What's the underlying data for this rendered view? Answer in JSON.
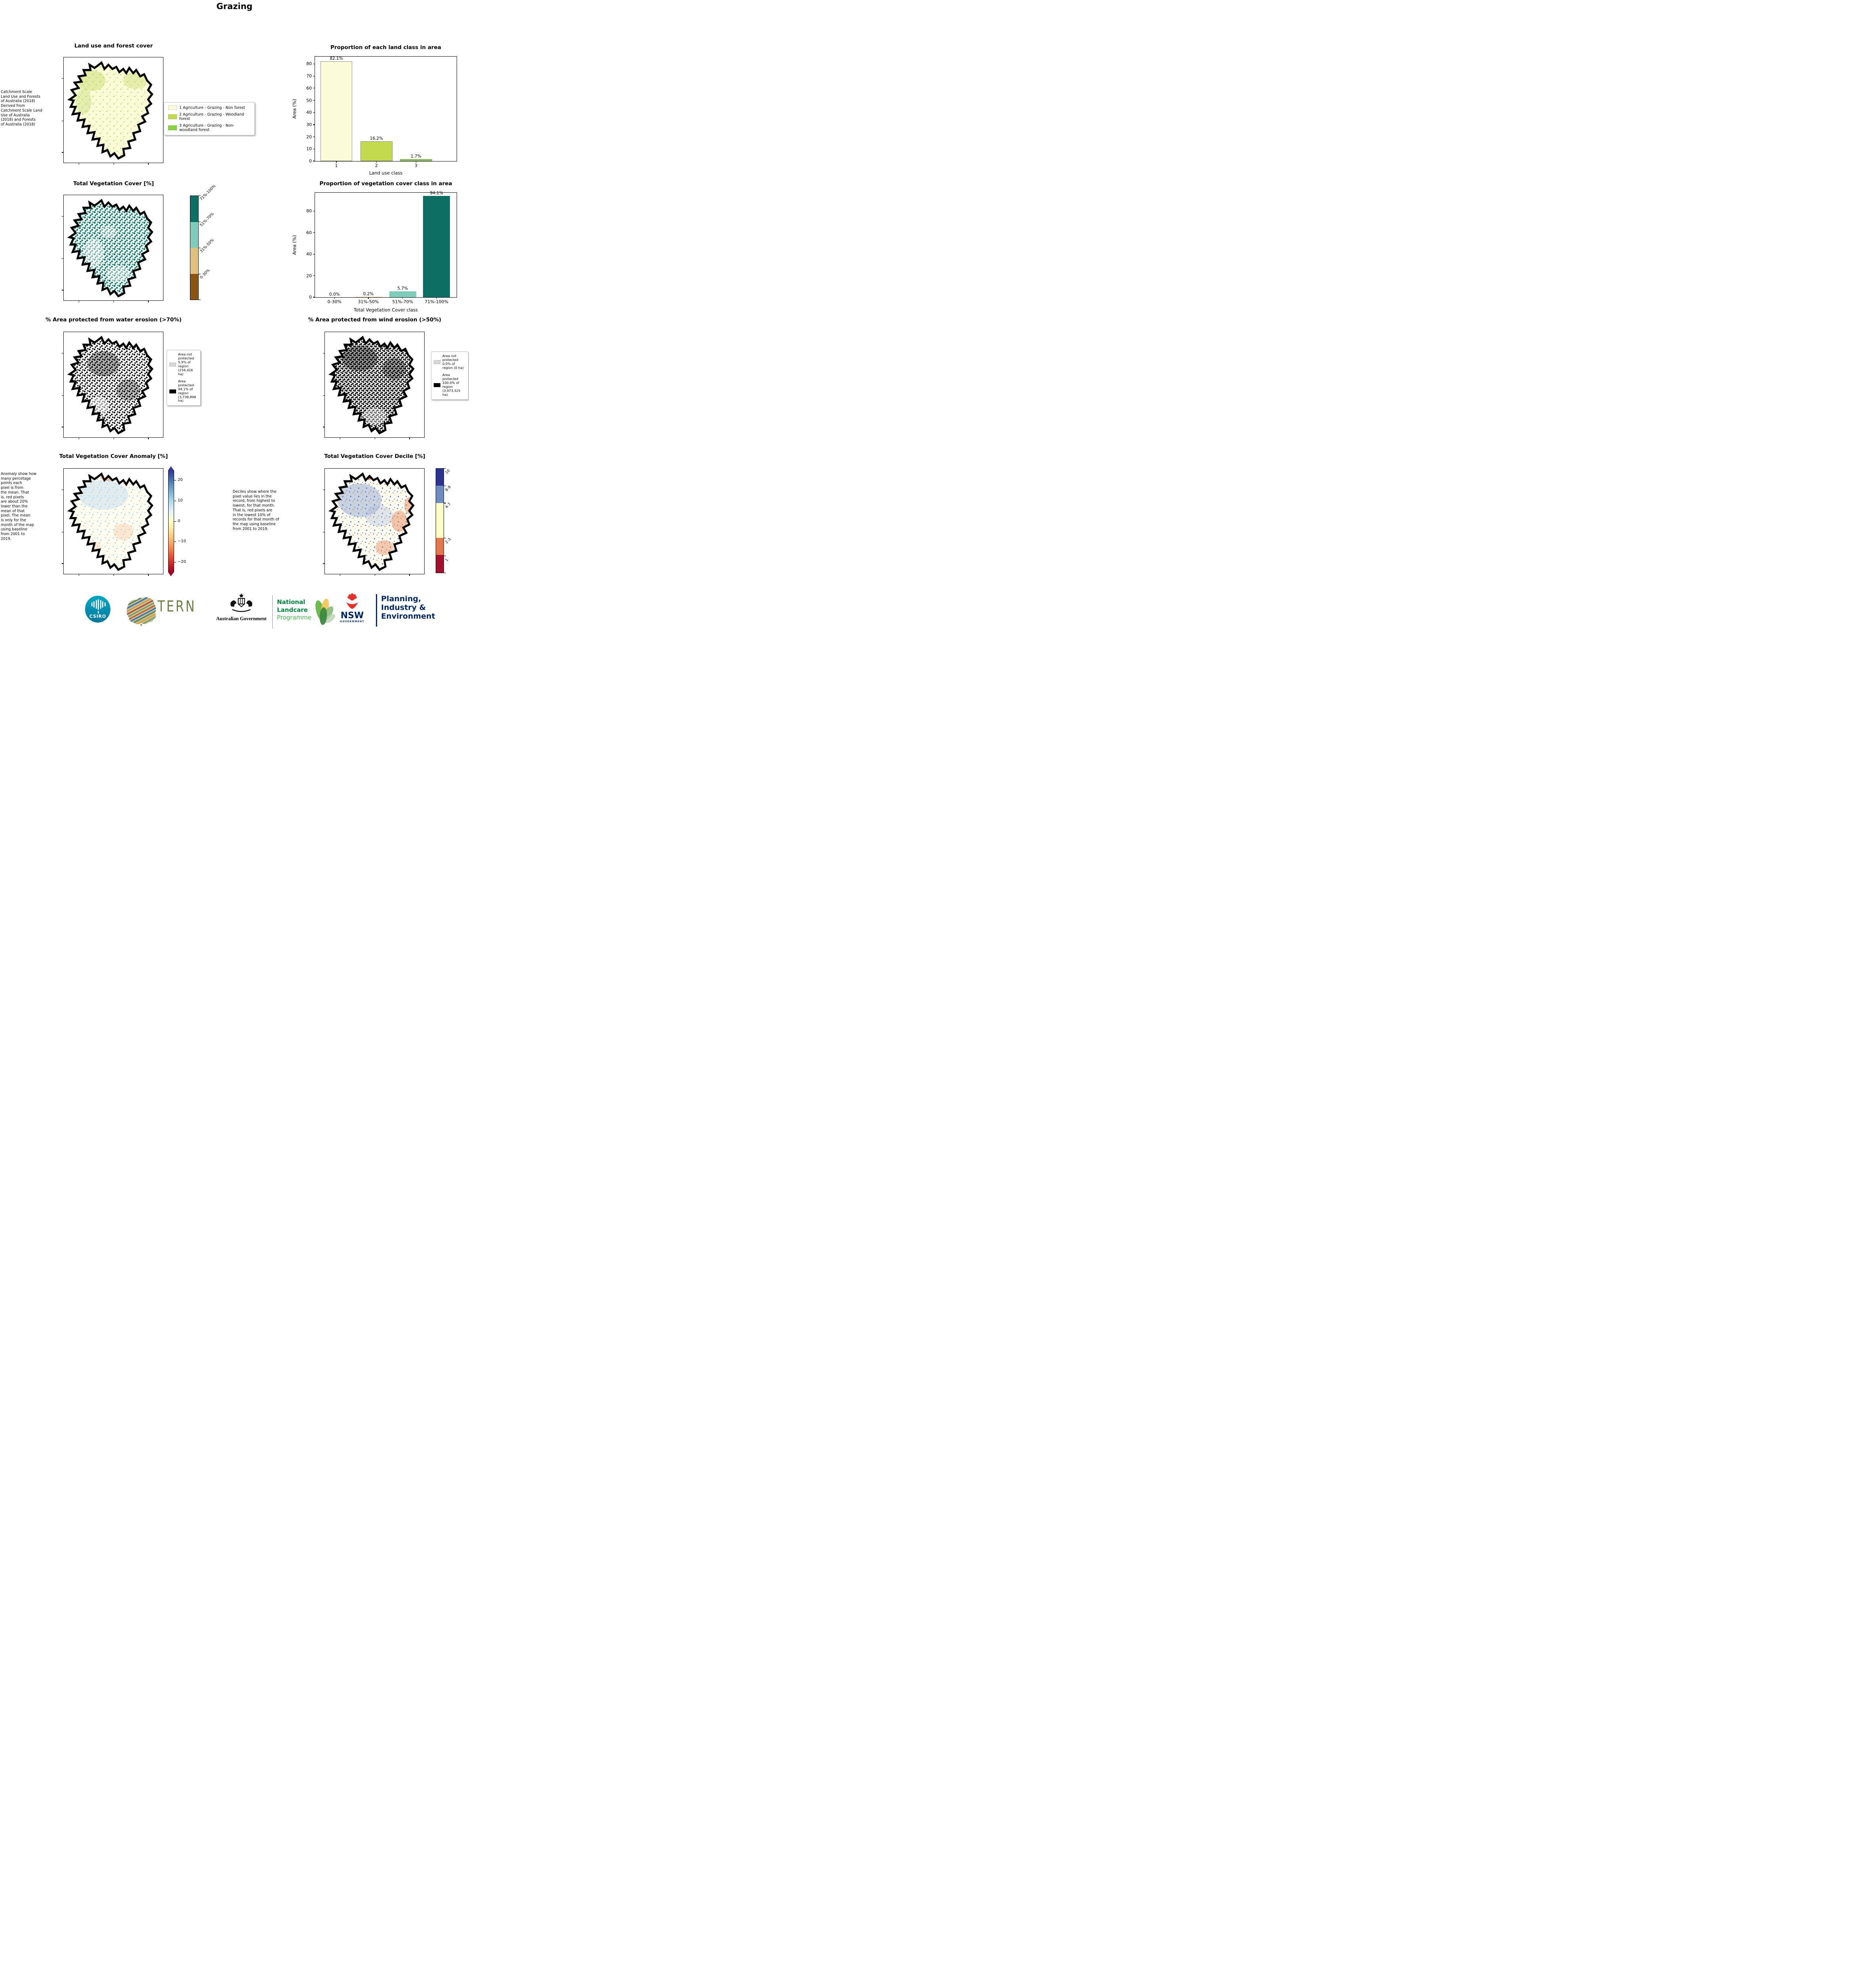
{
  "title": "Grazing",
  "chart_data": [
    {
      "type": "bar",
      "title": "Proportion of each land class in area",
      "xlabel": "Land use class",
      "ylabel": "Area (%)",
      "categories": [
        "1",
        "2",
        "3"
      ],
      "values": [
        82.1,
        16.2,
        1.7
      ],
      "value_labels": [
        "82.1%",
        "16.2%",
        "1.7%"
      ],
      "bar_colors": [
        "#fbfbd9",
        "#c3d94e",
        "#8bd341"
      ],
      "bar_edge": "#8a8a8a",
      "yticks": [
        0,
        10,
        20,
        30,
        40,
        50,
        60,
        70,
        80
      ],
      "ylim": [
        0,
        86
      ],
      "grid": false,
      "legend": "none"
    },
    {
      "type": "bar",
      "title": "Proportion of vegetation cover class in area",
      "xlabel": "Total Vegetation Cover class",
      "ylabel": "Area (%)",
      "categories": [
        "0-30%",
        "31%-50%",
        "51%-70%",
        "71%-100%"
      ],
      "values": [
        0.0,
        0.2,
        5.7,
        94.1
      ],
      "value_labels": [
        "0.0%",
        "0.2%",
        "5.7%",
        "94.1%"
      ],
      "bar_colors": [
        "#8a5513",
        "#dfc07f",
        "#7fccba",
        "#0d6e64"
      ],
      "bar_edge": null,
      "yticks": [
        0,
        20,
        40,
        60,
        80
      ],
      "ylim": [
        0,
        97
      ],
      "grid": false,
      "legend": "none"
    }
  ],
  "row1": {
    "note": "Catchment Scale\nLand Use and Forests\nof Australia (2018)\nDerived from\nCatchment Scale Land\nUse of Australia\n(2018) and Forests\nof Australia (2018)",
    "map_title": "Land use and forest cover",
    "legend_items": [
      {
        "label": "1 Agriculture - Grazing - Non forest",
        "color": "#fbfbd9"
      },
      {
        "label": "2 Agriculture - Grazing - Woodland forest",
        "color": "#c3d94e"
      },
      {
        "label": "3 Agriculture - Grazing - Non-woodland forest",
        "color": "#8bd341"
      }
    ]
  },
  "row2": {
    "map_title": "Total Vegetation Cover [%]",
    "colorbar": {
      "labels": [
        "71%-100%",
        "51%-70%",
        "31%-50%",
        "0-30%"
      ],
      "colors": [
        "#0d6e64",
        "#80ccba",
        "#dfc07f",
        "#8a5513"
      ]
    }
  },
  "row3": {
    "left": {
      "map_title": "% Area protected from water erosion (>70%)",
      "legend": [
        {
          "label": "Area not protected 5.9% of region (234,426 ha)",
          "color": "#d9d9d9"
        },
        {
          "label": "Area protected 94.1% of region (3,738,898 ha)",
          "color": "#000000"
        }
      ]
    },
    "right": {
      "map_title": "% Area protected from wind erosion (>50%)",
      "legend": [
        {
          "label": "Area not protected 0.0% of region (0 ha)",
          "color": "#d9d9d9"
        },
        {
          "label": "Area protected 100.0% of region (3,973,325 ha)",
          "color": "#000000"
        }
      ]
    }
  },
  "row4": {
    "left": {
      "map_title": "Total Vegetation Cover Anomaly [%]",
      "note": "Anomaly show how\nmany percetage\npoints each\npixel is from\nthe mean. That\nis, red pixels\nare about 20%\nlower than the\nmean of that\npixel. The mean\nis only for the\nmonth of the map\nusing baseline\nfrom 2001 to\n2019.",
      "colorbar_ticks": [
        "20",
        "10",
        "0",
        "−10",
        "−20"
      ],
      "gradient": [
        "#313695",
        "#4575b4",
        "#74add1",
        "#abd9e9",
        "#e0f3f8",
        "#ffffbf",
        "#fee090",
        "#fdae61",
        "#f46d43",
        "#d73027",
        "#a50026"
      ]
    },
    "right": {
      "map_title": "Total Vegetation Cover Decile [%]",
      "note": "Deciles show where the\npixel value lies in the\nrecord, from highest to\nlowest, for that month.\nThat is, red pixels are\nin the lowest 10% of\nrecords for that month of\nthe map using baseline\nfrom 2001 to 2019.",
      "colorbar": {
        "labels": [
          "10",
          "8-9",
          "4-7",
          "2-3",
          "1"
        ],
        "colors": [
          "#2d3393",
          "#6e8bc3",
          "#fdfdc4",
          "#e5754a",
          "#a50f2e"
        ],
        "heights": [
          16.5,
          16.5,
          33.5,
          16.5,
          17
        ]
      }
    }
  },
  "footer": {
    "csiro_label": "CSIRO",
    "tern_label": "TERN",
    "ausgov_label": "Australian Government",
    "landcare_lines": [
      "National",
      "Landcare",
      "Programme"
    ],
    "nsw_label": "NSW",
    "nsw_sub": "GOVERNMENT",
    "dept_lines": [
      "Planning,",
      "Industry &",
      "Environment"
    ]
  }
}
